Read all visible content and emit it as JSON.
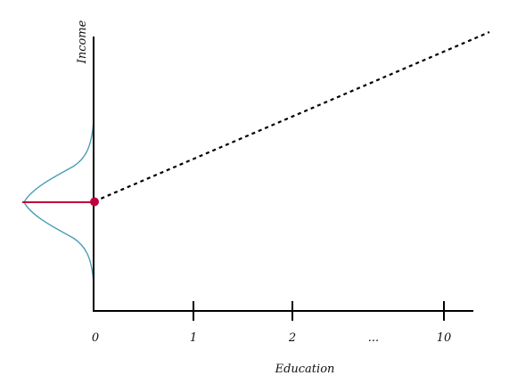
{
  "axes": {
    "y_label": "Income",
    "x_label": "Education"
  },
  "ticks": [
    {
      "label": "0",
      "has_mark": false
    },
    {
      "label": "1",
      "has_mark": true
    },
    {
      "label": "2",
      "has_mark": true
    },
    {
      "label": "...",
      "has_mark": false
    },
    {
      "label": "10",
      "has_mark": true
    }
  ],
  "colors": {
    "axis": "#000000",
    "distribution_curve": "#4a9db5",
    "intercept_marker": "#c0003c",
    "regression_line": "#000000"
  }
}
